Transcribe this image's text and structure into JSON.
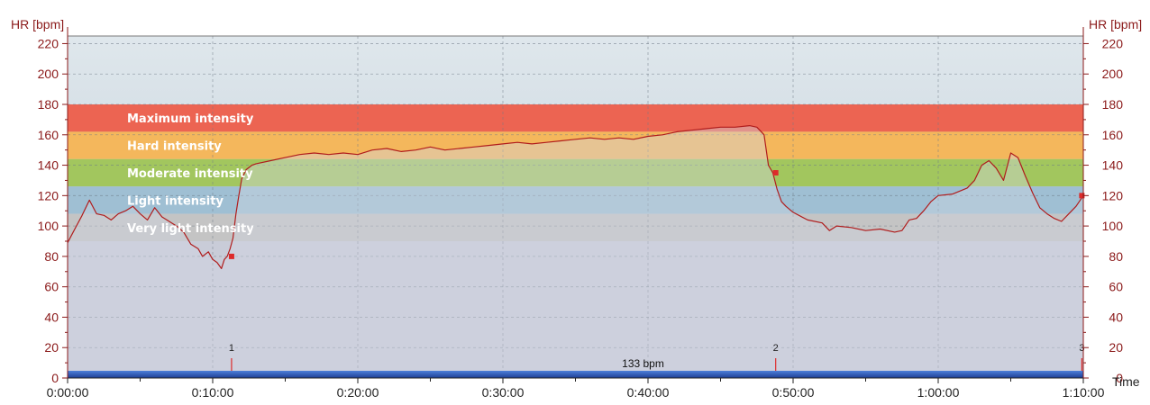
{
  "chart_data": {
    "type": "area",
    "ylabel_left": "HR [bpm]",
    "ylabel_right": "HR [bpm]",
    "xlabel": "Time",
    "ylim": [
      0,
      225
    ],
    "y_ticks": [
      0,
      20,
      40,
      60,
      80,
      100,
      120,
      140,
      160,
      180,
      200,
      220
    ],
    "xlim_minutes": [
      0,
      70
    ],
    "x_ticks": [
      {
        "minute": 0,
        "label": "0:00:00"
      },
      {
        "minute": 10,
        "label": "0:10:00"
      },
      {
        "minute": 20,
        "label": "0:20:00"
      },
      {
        "minute": 30,
        "label": "0:30:00"
      },
      {
        "minute": 40,
        "label": "0:40:00"
      },
      {
        "minute": 50,
        "label": "0:50:00"
      },
      {
        "minute": 60,
        "label": "1:00:00"
      },
      {
        "minute": 70,
        "label": "1:10:00"
      }
    ],
    "grid": true,
    "zones": [
      {
        "label": "Maximum intensity",
        "from": 162,
        "to": 180,
        "color": "#ec6452"
      },
      {
        "label": "Hard intensity",
        "from": 144,
        "to": 162,
        "color": "#f4b75c"
      },
      {
        "label": "Moderate intensity",
        "from": 126,
        "to": 144,
        "color": "#a2c65e"
      },
      {
        "label": "Light intensity",
        "from": 108,
        "to": 126,
        "color": "#9fbfd3"
      },
      {
        "label": "Very light intensity",
        "from": 90,
        "to": 108,
        "color": "#c4c4c4"
      }
    ],
    "series": [
      {
        "color": "#b01c1c",
        "x_minutes": [
          0,
          0.5,
          1,
          1.3,
          1.5,
          2,
          2.5,
          3,
          3.5,
          4,
          4.5,
          5,
          5.5,
          6,
          6.5,
          7,
          7.5,
          8,
          8.5,
          9,
          9.3,
          9.7,
          10,
          10.3,
          10.6,
          10.8,
          11,
          11.2,
          11.4,
          11.6,
          11.8,
          12,
          12.3,
          12.7,
          13,
          14,
          15,
          16,
          17,
          18,
          19,
          20,
          21,
          22,
          23,
          24,
          25,
          26,
          27,
          28,
          29,
          30,
          31,
          32,
          33,
          34,
          35,
          36,
          37,
          38,
          39,
          40,
          41,
          42,
          43,
          44,
          45,
          46,
          47,
          47.5,
          48,
          48.3,
          48.6,
          48.9,
          49.2,
          49.5,
          50,
          51,
          52,
          52.5,
          53,
          54,
          55,
          56,
          57,
          57.5,
          58,
          58.5,
          59,
          59.5,
          60,
          61,
          62,
          62.5,
          63,
          63.5,
          64,
          64.5,
          65,
          65.5,
          66,
          66.5,
          67,
          67.5,
          68,
          68.5,
          69,
          69.5,
          70
        ],
        "y": [
          89,
          98,
          107,
          113,
          117,
          108,
          107,
          104,
          108,
          110,
          113,
          108,
          104,
          112,
          106,
          103,
          100,
          96,
          88,
          85,
          80,
          83,
          78,
          76,
          72,
          78,
          80,
          85,
          92,
          108,
          120,
          131,
          137,
          140,
          141,
          143,
          145,
          147,
          148,
          147,
          148,
          147,
          150,
          151,
          149,
          150,
          152,
          150,
          151,
          152,
          153,
          154,
          155,
          154,
          155,
          156,
          157,
          158,
          157,
          158,
          157,
          159,
          160,
          162,
          163,
          164,
          165,
          165,
          166,
          165,
          160,
          140,
          135,
          124,
          116,
          113,
          109,
          104,
          102,
          97,
          100,
          99,
          97,
          98,
          96,
          97,
          104,
          105,
          110,
          116,
          120,
          121,
          125,
          130,
          140,
          143,
          138,
          130,
          148,
          145,
          133,
          122,
          112,
          108,
          105,
          103,
          108,
          113,
          120
        ]
      }
    ],
    "laps": [
      {
        "label": "1",
        "minute": 11.3,
        "hr": 80
      },
      {
        "label": "2",
        "minute": 48.8,
        "hr": 135
      },
      {
        "label": "3",
        "minute": 69.9,
        "hr": 120
      }
    ],
    "average_label": "133 bpm",
    "colors": {
      "sky_top": "#dfe7ec",
      "sky_bottom": "#bacad6",
      "baseline_bar": "#2652b0",
      "line": "#b01c1c",
      "axis_text": "#8b1a1a"
    }
  }
}
